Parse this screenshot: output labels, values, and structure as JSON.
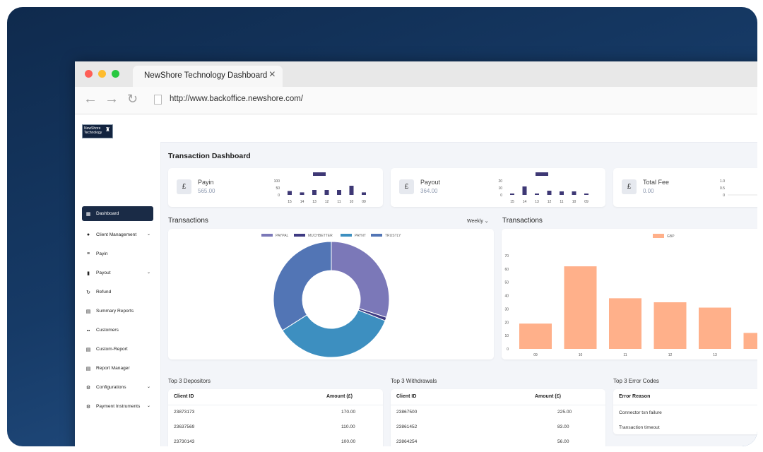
{
  "browser": {
    "tab_title": "NewShore Technology Dashboard",
    "url": "http://www.backoffice.newshore.com/"
  },
  "logo": {
    "text": "NewShore Technology"
  },
  "sidebar": {
    "items": [
      {
        "label": "Dashboard",
        "icon": "grid-icon",
        "active": true,
        "has_chevron": false
      },
      {
        "label": "Client Management",
        "icon": "user-icon",
        "active": false,
        "has_chevron": true
      },
      {
        "label": "Payin",
        "icon": "list-icon",
        "active": false,
        "has_chevron": false
      },
      {
        "label": "Payout",
        "icon": "bag-icon",
        "active": false,
        "has_chevron": true
      },
      {
        "label": "Refund",
        "icon": "refresh-icon",
        "active": false,
        "has_chevron": false
      },
      {
        "label": "Summary Reports",
        "icon": "report-icon",
        "active": false,
        "has_chevron": false
      },
      {
        "label": "Customers",
        "icon": "users-icon",
        "active": false,
        "has_chevron": false
      },
      {
        "label": "Custom-Report",
        "icon": "report-icon",
        "active": false,
        "has_chevron": false
      },
      {
        "label": "Report Manager",
        "icon": "report-icon",
        "active": false,
        "has_chevron": false
      },
      {
        "label": "Configurations",
        "icon": "gears-icon",
        "active": false,
        "has_chevron": true
      },
      {
        "label": "Payment Instruments",
        "icon": "gears-icon",
        "active": false,
        "has_chevron": true
      }
    ]
  },
  "dashboard": {
    "title": "Transaction Dashboard"
  },
  "stats": [
    {
      "currency": "£",
      "label": "Payin",
      "value": "565.00"
    },
    {
      "currency": "£",
      "label": "Payout",
      "value": "364.00"
    },
    {
      "currency": "£",
      "label": "Total Fee",
      "value": "0.00"
    }
  ],
  "chart_data": [
    {
      "type": "bar",
      "categories": [
        "15",
        "14",
        "13",
        "12",
        "11",
        "10",
        "09"
      ],
      "values": [
        28,
        18,
        35,
        35,
        35,
        65,
        18
      ],
      "y_ticks": [
        "100",
        "50",
        "0"
      ],
      "ylim": [
        0,
        100
      ],
      "color": "#3e3875"
    },
    {
      "type": "bar",
      "categories": [
        "15",
        "14",
        "13",
        "12",
        "11",
        "10",
        "09"
      ],
      "values": [
        2,
        12,
        2,
        6,
        5,
        5,
        2
      ],
      "y_ticks": [
        "20",
        "10",
        "0"
      ],
      "ylim": [
        0,
        20
      ],
      "color": "#3e3875"
    },
    {
      "type": "bar",
      "categories": [],
      "values": [],
      "y_ticks": [
        "1.0",
        "0.5",
        "0"
      ],
      "ylim": [
        0,
        1
      ],
      "color": "#3e3875"
    },
    {
      "type": "pie",
      "title": "Transactions",
      "dropdown": "Weekly",
      "legend": [
        "PAYPAL",
        "MUCHBETTER",
        "PAYNT",
        "TRUSTLY"
      ],
      "values": [
        30,
        1,
        35,
        34
      ],
      "colors": [
        "#7b78b8",
        "#3e3a82",
        "#3d8fc0",
        "#5275b5"
      ],
      "legend_colors": [
        "#7b78b8",
        "#3e3a82",
        "#3d8fc0",
        "#5275b5"
      ]
    },
    {
      "type": "bar",
      "title": "Transactions",
      "legend": [
        "GBP"
      ],
      "categories": [
        "09",
        "10",
        "11",
        "12",
        "13",
        "14"
      ],
      "values": [
        19,
        62,
        38,
        35,
        31,
        12
      ],
      "y_ticks": [
        "0",
        "10",
        "20",
        "30",
        "40",
        "50",
        "60",
        "70"
      ],
      "ylim": [
        0,
        70
      ],
      "color": "#ffb08a"
    }
  ],
  "tables": {
    "depositors": {
      "title": "Top 3 Depositors",
      "headers": [
        "Client ID",
        "Amount (£)"
      ],
      "rows": [
        [
          "23873173",
          "170.00"
        ],
        [
          "23637569",
          "110.00"
        ],
        [
          "23730143",
          "100.00"
        ]
      ]
    },
    "withdrawals": {
      "title": "Top 3 Withdrawals",
      "headers": [
        "Client ID",
        "Amount (£)"
      ],
      "rows": [
        [
          "23867500",
          "225.00"
        ],
        [
          "23861452",
          "83.00"
        ],
        [
          "23864254",
          "56.00"
        ]
      ]
    },
    "errors": {
      "title": "Top 3 Error Codes",
      "headers": [
        "Error Reason"
      ],
      "rows": [
        [
          "Connector txn failure"
        ],
        [
          "Transaction timeout"
        ]
      ]
    }
  }
}
